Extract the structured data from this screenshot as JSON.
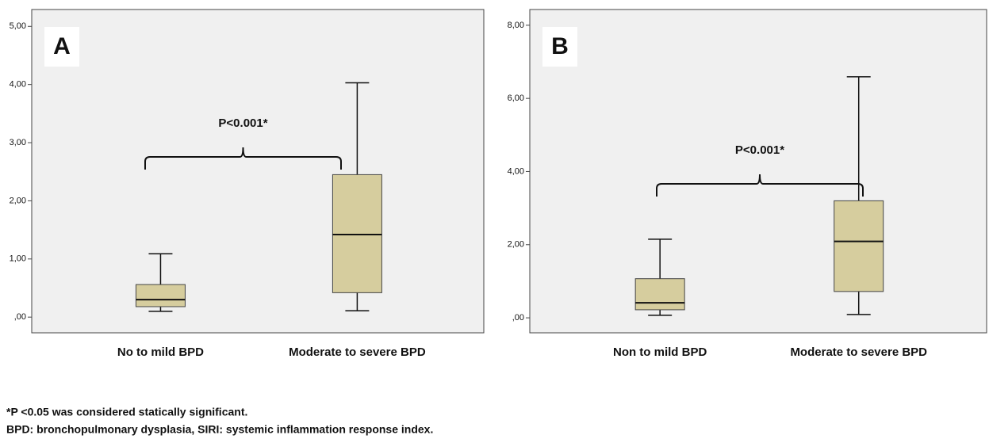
{
  "chart_data": [
    {
      "type": "box",
      "panel_label": "A",
      "annotation": "P<0.001*",
      "categories": [
        "No to mild BPD",
        "Moderate to severe BPD"
      ],
      "boxes": [
        {
          "whisker_low": 0.1,
          "q1": 0.18,
          "median": 0.3,
          "q3": 0.56,
          "whisker_high": 1.09
        },
        {
          "whisker_low": 0.11,
          "q1": 0.42,
          "median": 1.42,
          "q3": 2.45,
          "whisker_high": 4.03
        }
      ],
      "color": "#d6cd9e",
      "ylim": [
        -0.27,
        5.29
      ],
      "yticks": [
        {
          "value": 0,
          "label": ",00"
        },
        {
          "value": 1,
          "label": "1,00"
        },
        {
          "value": 2,
          "label": "2,00"
        },
        {
          "value": 3,
          "label": "3,00"
        },
        {
          "value": 4,
          "label": "4,00"
        },
        {
          "value": 5,
          "label": "5,00"
        }
      ]
    },
    {
      "type": "box",
      "panel_label": "B",
      "annotation": "P<0.001*",
      "categories": [
        "Non to mild BPD",
        "Moderate to severe BPD"
      ],
      "boxes": [
        {
          "whisker_low": 0.07,
          "q1": 0.22,
          "median": 0.41,
          "q3": 1.07,
          "whisker_high": 2.15
        },
        {
          "whisker_low": 0.09,
          "q1": 0.72,
          "median": 2.09,
          "q3": 3.2,
          "whisker_high": 6.59
        }
      ],
      "color": "#d6cd9e",
      "ylim": [
        -0.41,
        8.43
      ],
      "yticks": [
        {
          "value": 0,
          "label": ",00"
        },
        {
          "value": 2,
          "label": "2,00"
        },
        {
          "value": 4,
          "label": "4,00"
        },
        {
          "value": 6,
          "label": "6,00"
        },
        {
          "value": 8,
          "label": "8,00"
        }
      ]
    }
  ],
  "notes": [
    "*P <0.05 was considered statically significant.",
    "BPD: bronchopulmonary dysplasia, SIRI: systemic inflammation response index."
  ]
}
